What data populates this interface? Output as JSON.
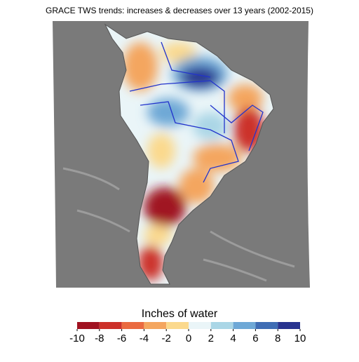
{
  "title": "GRACE TWS trends: increases & decreases over 13 years (2002-2015)",
  "colorbar": {
    "label": "Inches of water",
    "ticks": [
      -10,
      -8,
      -6,
      -4,
      -2,
      0,
      2,
      4,
      6,
      8,
      10
    ],
    "colors": [
      "#a01220",
      "#cc3029",
      "#ea6a40",
      "#f4a65f",
      "#fbd98d",
      "#eaf5f8",
      "#aad6e6",
      "#6ea8d6",
      "#3f6db4",
      "#28338f"
    ]
  }
}
